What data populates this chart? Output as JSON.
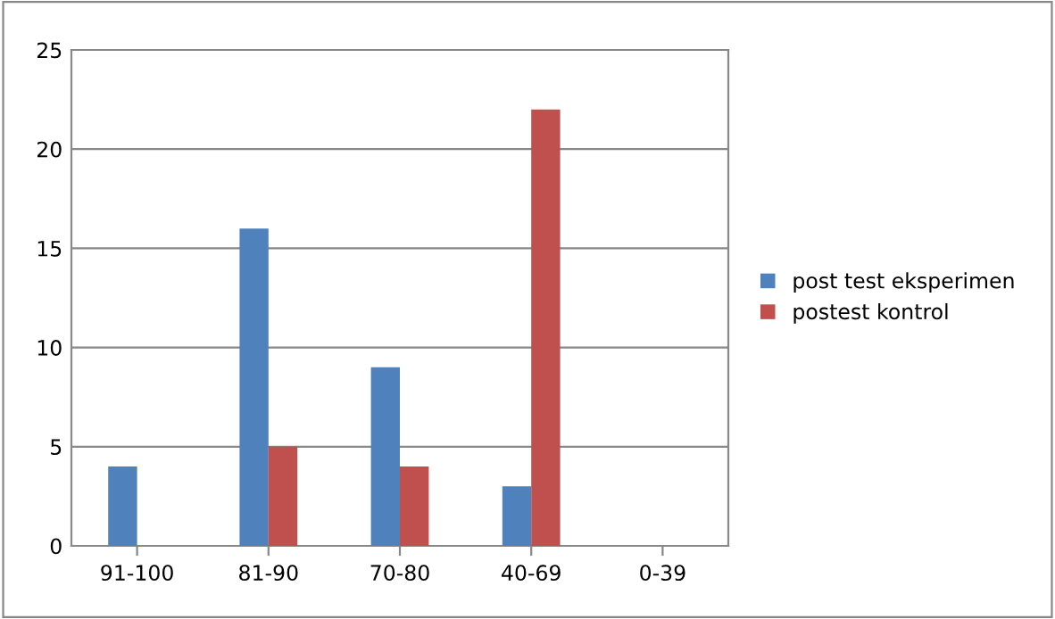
{
  "chart_data": {
    "type": "bar",
    "categories": [
      "91-100",
      "81-90",
      "70-80",
      "40-69",
      "0-39"
    ],
    "series": [
      {
        "name": "post test eksperimen",
        "color": "#4f81bd",
        "values": [
          4,
          16,
          9,
          3,
          0
        ]
      },
      {
        "name": "postest kontrol",
        "color": "#c0504d",
        "values": [
          0,
          5,
          4,
          22,
          0
        ]
      }
    ],
    "ylim": [
      0,
      25
    ],
    "yticks": [
      0,
      5,
      10,
      15,
      20,
      25
    ],
    "grid": "y",
    "legend": "right"
  }
}
